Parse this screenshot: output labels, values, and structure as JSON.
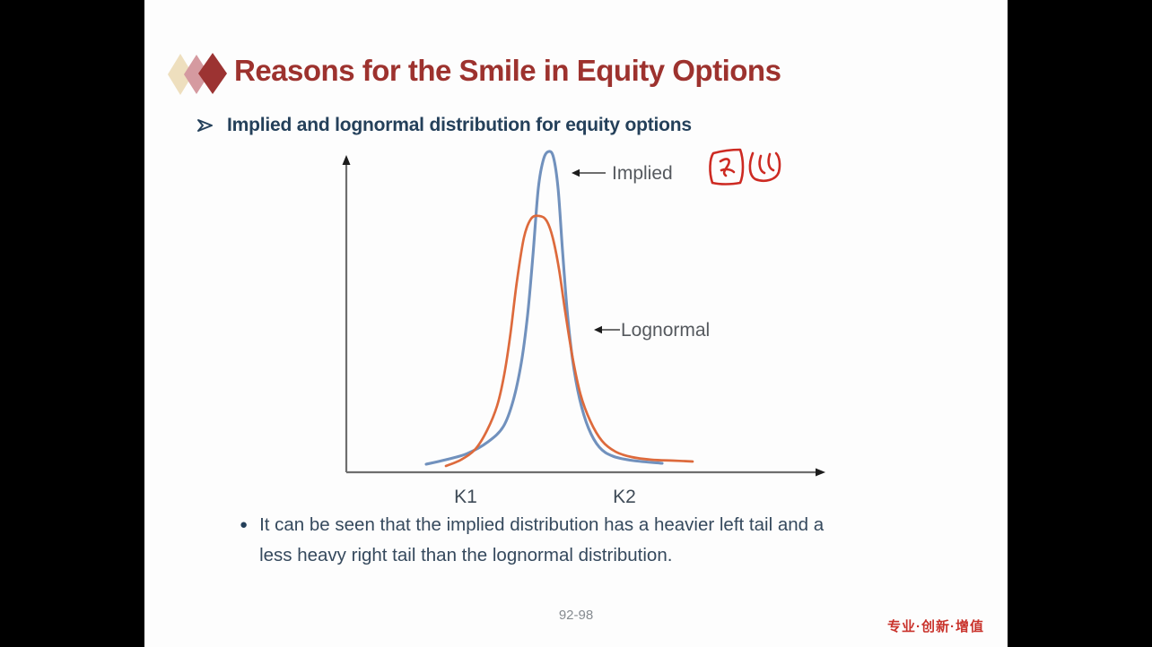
{
  "slide": {
    "title": "Reasons for the Smile in Equity Options",
    "subtitle": "Implied and lognormal distribution for equity options",
    "subtitle_marker": "➢",
    "body_bullet_marker": "●",
    "body_lines": [
      "It can be seen that the implied distribution has a heavier left tail and a",
      "less heavy right tail than the lognormal distribution."
    ],
    "page_number": "92-98",
    "footer_slogan": "专业·创新·增值",
    "colors": {
      "title_red": "#9d322e",
      "heading_navy": "#24405a",
      "body_slate": "#35495d",
      "footer_red": "#c9332c",
      "handwriting_red": "#cd2a22",
      "deco_cream": "#eedfbe",
      "deco_rose": "#d59aa0",
      "deco_dark_red": "#9c3332"
    }
  },
  "chart_data": {
    "type": "line",
    "x_ticks": [
      {
        "label": "K1",
        "x": 358,
        "y": 561
      },
      {
        "label": "K2",
        "x": 535,
        "y": 561
      }
    ],
    "axes": {
      "y": {
        "x": 225,
        "y_bottom": 527,
        "y_top": 183,
        "tip_y": 173
      },
      "x": {
        "y": 527,
        "x_left": 225,
        "x_right": 750,
        "tip_x": 759
      },
      "color": "#6e6e6e",
      "arrow_color": "#1c1c1c"
    },
    "series": [
      {
        "name": "Implied",
        "color": "#7191bd",
        "points": [
          [
            314,
            518
          ],
          [
            336,
            513
          ],
          [
            360,
            506
          ],
          [
            383,
            493
          ],
          [
            400,
            476
          ],
          [
            411,
            447
          ],
          [
            420,
            405
          ],
          [
            427,
            352
          ],
          [
            433,
            285
          ],
          [
            439,
            210
          ],
          [
            445,
            177
          ],
          [
            451,
            169
          ],
          [
            456,
            176
          ],
          [
            461,
            210
          ],
          [
            466,
            280
          ],
          [
            471,
            345
          ],
          [
            477,
            400
          ],
          [
            485,
            445
          ],
          [
            495,
            478
          ],
          [
            507,
            499
          ],
          [
            522,
            509
          ],
          [
            545,
            514
          ],
          [
            577,
            517
          ]
        ]
      },
      {
        "name": "Lognormal",
        "color": "#dd6a3c",
        "points": [
          [
            336,
            520
          ],
          [
            353,
            513
          ],
          [
            369,
            501
          ],
          [
            382,
            480
          ],
          [
            393,
            453
          ],
          [
            401,
            418
          ],
          [
            408,
            372
          ],
          [
            415,
            315
          ],
          [
            423,
            265
          ],
          [
            431,
            244
          ],
          [
            440,
            241
          ],
          [
            448,
            246
          ],
          [
            455,
            265
          ],
          [
            462,
            300
          ],
          [
            469,
            348
          ],
          [
            477,
            398
          ],
          [
            486,
            440
          ],
          [
            497,
            470
          ],
          [
            510,
            492
          ],
          [
            525,
            504
          ],
          [
            543,
            510
          ],
          [
            565,
            513
          ],
          [
            589,
            514
          ],
          [
            611,
            515
          ]
        ]
      }
    ],
    "annotations": [
      {
        "text": "Implied",
        "text_x": 521,
        "text_y": 200,
        "line_x1": 485,
        "line_x2": 514,
        "line_y": 193,
        "tip_x": 476,
        "tip_y": 193
      },
      {
        "text": "Lognormal",
        "text_x": 531,
        "text_y": 375,
        "line_x1": 510,
        "line_x2": 530,
        "line_y": 368,
        "tip_x": 501,
        "tip_y": 368
      }
    ],
    "handwritten_note": "图四"
  }
}
